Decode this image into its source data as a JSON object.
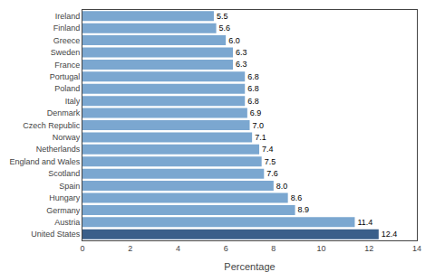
{
  "chart_data": {
    "type": "bar",
    "orientation": "horizontal",
    "categories": [
      "Ireland",
      "Finland",
      "Greece",
      "Sweden",
      "France",
      "Portugal",
      "Poland",
      "Italy",
      "Denmark",
      "Czech Republic",
      "Norway",
      "Netherlands",
      "England and Wales",
      "Scotland",
      "Spain",
      "Hungary",
      "Germany",
      "Austria",
      "United States"
    ],
    "values": [
      5.5,
      5.6,
      6.0,
      6.3,
      6.3,
      6.8,
      6.8,
      6.8,
      6.9,
      7.0,
      7.1,
      7.4,
      7.5,
      7.6,
      8.0,
      8.6,
      8.9,
      11.4,
      12.4
    ],
    "value_labels": [
      "5.5",
      "5.6",
      "6.0",
      "6.3",
      "6.3",
      "6.8",
      "6.8",
      "6.8",
      "6.9",
      "7.0",
      "7.1",
      "7.4",
      "7.5",
      "7.6",
      "8.0",
      "8.6",
      "8.9",
      "11.4",
      "12.4"
    ],
    "colors": [
      "#7ba7d0",
      "#7ba7d0",
      "#7ba7d0",
      "#7ba7d0",
      "#7ba7d0",
      "#7ba7d0",
      "#7ba7d0",
      "#7ba7d0",
      "#7ba7d0",
      "#7ba7d0",
      "#7ba7d0",
      "#7ba7d0",
      "#7ba7d0",
      "#7ba7d0",
      "#7ba7d0",
      "#7ba7d0",
      "#7ba7d0",
      "#7ba7d0",
      "#3a5f8a"
    ],
    "xlabel": "Percentage",
    "xlim": [
      0,
      14
    ],
    "xticks": [
      0,
      2,
      4,
      6,
      8,
      10,
      12,
      14
    ],
    "data_labels": true,
    "grid": false
  }
}
